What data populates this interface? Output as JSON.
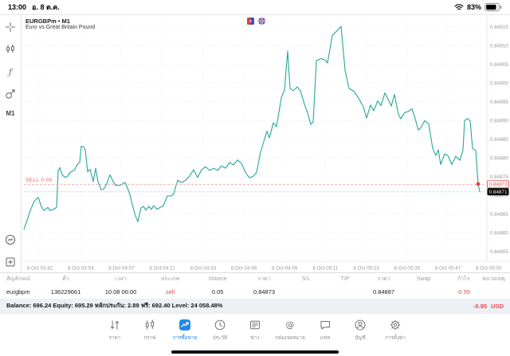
{
  "status_bar": {
    "time": "13:00",
    "date": "อ. 8 ต.ค.",
    "battery": "83%",
    "icons": [
      "wifi-icon",
      "battery-icon"
    ]
  },
  "rail": {
    "timeframe": "M1",
    "top_items": [
      {
        "icon": "crosshair-icon"
      },
      {
        "icon": "indicators-icon"
      },
      {
        "icon": "functions-icon"
      },
      {
        "icon": "objects-icon"
      }
    ],
    "bottom_items": [
      {
        "icon": "trade-mode-icon"
      },
      {
        "icon": "new-chart-icon"
      }
    ]
  },
  "chart": {
    "title": "EURGBPm • M1",
    "description": "Euro vs Great Britain Pound",
    "flag_icons": [
      "eur-flag-icon",
      "gbp-flag-icon"
    ],
    "sell_label": "SELL 0.05",
    "sell_badge": "0.84873",
    "bid_badge": "0.84871",
    "colors": {
      "line": "#26a69a",
      "sell": "#ef5350",
      "sell_line": "#f0a8a8",
      "bid_line": "#8fccc0",
      "accent": "#1e88e5",
      "negative": "#e5484d"
    }
  },
  "chart_data": {
    "type": "line",
    "title": "EURGBPm M1",
    "x_labels": [
      "8 Oct 03:42",
      "8 Oct 03:54",
      "8 Oct 04:07",
      "8 Oct 04:21",
      "8 Oct 04:33",
      "8 Oct 04:46",
      "8 Oct 04:59",
      "8 Oct 05:11",
      "8 Oct 05:23",
      "8 Oct 05:35",
      "8 Oct 05:47",
      "8 Oct 06:00"
    ],
    "y_labels": [
      "0.84915",
      "0.84910",
      "0.84905",
      "0.84900",
      "0.84895",
      "0.84890",
      "0.84885",
      "0.84880",
      "0.84875",
      "0.84870",
      "0.84865",
      "0.84860",
      "0.84855"
    ],
    "ylim": [
      0.84855,
      0.84915
    ],
    "grid": true,
    "sell_line_price": 0.84873,
    "bid_line_price": 0.84871,
    "series": [
      {
        "name": "EURGBPm bid",
        "points": [
          [
            30,
            0.84861
          ],
          [
            35,
            0.84864
          ],
          [
            38,
            0.84866
          ],
          [
            43,
            0.848685
          ],
          [
            48,
            0.848695
          ],
          [
            52,
            0.84867
          ],
          [
            55,
            0.84866
          ],
          [
            60,
            0.848668
          ],
          [
            63,
            0.84866
          ],
          [
            67,
            0.848663
          ],
          [
            71,
            0.848668
          ],
          [
            73,
            0.848765
          ],
          [
            75,
            0.848775
          ],
          [
            78,
            0.848755
          ],
          [
            82,
            0.848748
          ],
          [
            85,
            0.848752
          ],
          [
            88,
            0.848762
          ],
          [
            93,
            0.848767
          ],
          [
            97,
            0.848783
          ],
          [
            100,
            0.848788
          ],
          [
            102,
            0.848832
          ],
          [
            105,
            0.84883
          ],
          [
            107,
            0.848822
          ],
          [
            110,
            0.848763
          ],
          [
            113,
            0.84877
          ],
          [
            117,
            0.848737
          ],
          [
            120,
            0.848773
          ],
          [
            123,
            0.848737
          ],
          [
            127,
            0.848715
          ],
          [
            130,
            0.848717
          ],
          [
            133,
            0.848727
          ],
          [
            138,
            0.848755
          ],
          [
            142,
            0.848737
          ],
          [
            145,
            0.848727
          ],
          [
            150,
            0.848727
          ],
          [
            153,
            0.84873
          ],
          [
            157,
            0.848735
          ],
          [
            160,
            0.84872
          ],
          [
            163,
            0.848703
          ],
          [
            167,
            0.848667
          ],
          [
            170,
            0.848646
          ],
          [
            173,
            0.84863
          ],
          [
            177,
            0.848667
          ],
          [
            180,
            0.848671
          ],
          [
            183,
            0.848661
          ],
          [
            187,
            0.848671
          ],
          [
            190,
            0.848663
          ],
          [
            193,
            0.848673
          ],
          [
            197,
            0.848663
          ],
          [
            200,
            0.848667
          ],
          [
            205,
            0.848673
          ],
          [
            210,
            0.848699
          ],
          [
            215,
            0.848699
          ],
          [
            218,
            0.848705
          ],
          [
            223,
            0.848741
          ],
          [
            227,
            0.848735
          ],
          [
            230,
            0.848737
          ],
          [
            233,
            0.848741
          ],
          [
            238,
            0.848752
          ],
          [
            243,
            0.848769
          ],
          [
            248,
            0.848748
          ],
          [
            253,
            0.848769
          ],
          [
            258,
            0.848777
          ],
          [
            263,
            0.848767
          ],
          [
            268,
            0.848773
          ],
          [
            273,
            0.848767
          ],
          [
            278,
            0.848779
          ],
          [
            283,
            0.848773
          ],
          [
            288,
            0.848788
          ],
          [
            293,
            0.848782
          ],
          [
            298,
            0.848795
          ],
          [
            303,
            0.848786
          ],
          [
            308,
            0.848762
          ],
          [
            313,
            0.848747
          ],
          [
            318,
            0.848752
          ],
          [
            322,
            0.848762
          ],
          [
            327,
            0.848816
          ],
          [
            333,
            0.848858
          ],
          [
            335,
            0.848872
          ],
          [
            338,
            0.848854
          ],
          [
            343,
            0.848894
          ],
          [
            347,
            0.848884
          ],
          [
            350,
            0.848922
          ],
          [
            353,
            0.848962
          ],
          [
            357,
            0.848982
          ],
          [
            361,
            0.849086
          ],
          [
            364,
            0.848986
          ],
          [
            368,
            0.84898
          ],
          [
            373,
            0.84899
          ],
          [
            377,
            0.84898
          ],
          [
            382,
            0.848944
          ],
          [
            386,
            0.84892
          ],
          [
            390,
            0.84889
          ],
          [
            393,
            0.848897
          ],
          [
            397,
            0.84906
          ],
          [
            403,
            0.849066
          ],
          [
            408,
            0.849062
          ],
          [
            411,
            0.849054
          ],
          [
            417,
            0.849128
          ],
          [
            423,
            0.84914
          ],
          [
            428,
            0.849152
          ],
          [
            433,
            0.849035
          ],
          [
            438,
            0.848986
          ],
          [
            444,
            0.848979
          ],
          [
            450,
            0.84896
          ],
          [
            456,
            0.848937
          ],
          [
            460,
            0.848907
          ],
          [
            465,
            0.848942
          ],
          [
            469,
            0.848926
          ],
          [
            474,
            0.848953
          ],
          [
            478,
            0.84894
          ],
          [
            483,
            0.848974
          ],
          [
            488,
            0.848953
          ],
          [
            491,
            0.848939
          ],
          [
            495,
            0.84897
          ],
          [
            500,
            0.848917
          ],
          [
            503,
            0.848905
          ],
          [
            508,
            0.848922
          ],
          [
            512,
            0.848924
          ],
          [
            517,
            0.848932
          ],
          [
            521,
            0.848905
          ],
          [
            525,
            0.848875
          ],
          [
            528,
            0.848881
          ],
          [
            533,
            0.8489
          ],
          [
            538,
            0.848891
          ],
          [
            543,
            0.848826
          ],
          [
            547,
            0.848807
          ],
          [
            550,
            0.848822
          ],
          [
            553,
            0.848783
          ],
          [
            558,
            0.848811
          ],
          [
            562,
            0.848807
          ],
          [
            567,
            0.848783
          ],
          [
            572,
            0.848805
          ],
          [
            577,
            0.848794
          ],
          [
            581,
            0.848822
          ],
          [
            583,
            0.8489
          ],
          [
            587,
            0.848906
          ],
          [
            590,
            0.848899
          ],
          [
            593,
            0.848826
          ],
          [
            597,
            0.84882
          ],
          [
            600,
            0.848732
          ],
          [
            602,
            0.84871
          ]
        ]
      }
    ]
  },
  "table": {
    "headers": [
      "สัญลักษณ์",
      "ตั๋ว",
      "เวลา",
      "ประเภท",
      "Volume",
      "ราคา",
      "S/L",
      "T/P",
      "ราคา",
      "Swap",
      "กำไร",
      "หมายเหตุ"
    ],
    "rows": [
      [
        "eurgbpm",
        "136229661",
        "10.08 06:00",
        "sell",
        "0.05",
        "0.84873",
        "",
        "",
        "0.84887",
        "",
        "-0.95",
        ""
      ]
    ]
  },
  "balance": {
    "summary": "Balance: 696.24 Equity: 695.29 หลักประกัน: 2.89 ฟรี: 692.40 Level: 24 058.48%",
    "profit": "-0.95",
    "currency": "USD"
  },
  "nav": {
    "items": [
      {
        "label": "ราคา",
        "icon": "quotes-icon",
        "active": false
      },
      {
        "label": "กราฟ",
        "icon": "chart-icon",
        "active": false
      },
      {
        "label": "การซื้อขาย",
        "icon": "trade-icon",
        "active": true
      },
      {
        "label": "ประวัติ",
        "icon": "history-icon",
        "active": false
      },
      {
        "label": "ข่าว",
        "icon": "news-icon",
        "active": false
      },
      {
        "label": "กล่องจดหมาย",
        "icon": "mailbox-icon",
        "active": false
      },
      {
        "label": "แชท",
        "icon": "chat-icon",
        "active": false
      },
      {
        "label": "บัญชี",
        "icon": "account-icon",
        "active": false
      },
      {
        "label": "การตั้งค่า",
        "icon": "settings-icon",
        "active": false
      }
    ]
  }
}
